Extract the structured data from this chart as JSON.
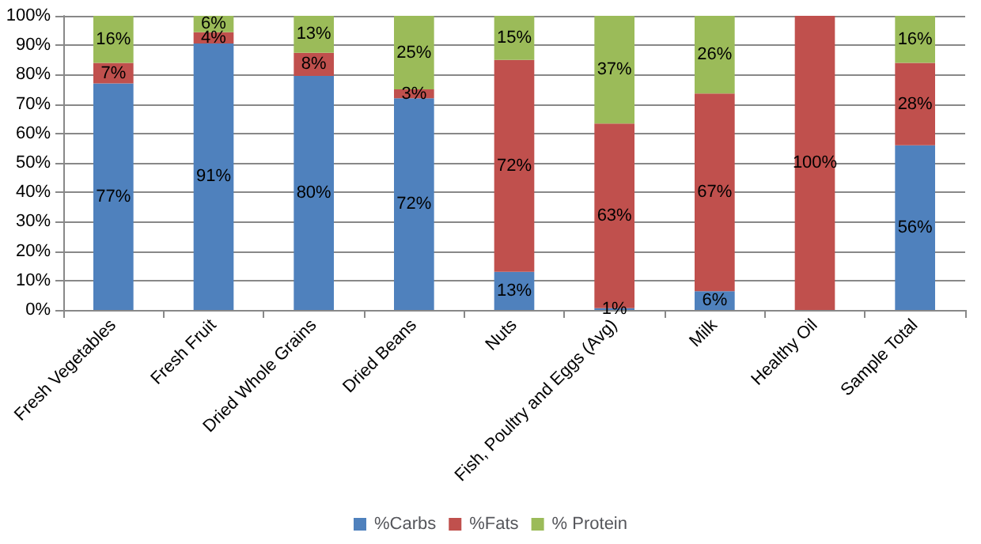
{
  "chart_data": {
    "type": "bar",
    "stacked": true,
    "categories": [
      "Fresh Vegetables",
      "Fresh Fruit",
      "Dried Whole Grains",
      "Dried Beans",
      "Nuts",
      "Fish, Poultry and Eggs (Avg)",
      "Milk",
      "Healthy Oil",
      "Sample Total"
    ],
    "series": [
      {
        "name": "%Carbs",
        "color": "#4f81bd",
        "values": [
          77,
          90.6,
          79.6,
          72,
          13,
          0.6,
          6.4,
          0,
          56
        ],
        "value_labels": [
          "77%",
          "91%",
          "80%",
          "72%",
          "13%",
          "1%",
          "6%",
          null,
          "56%"
        ]
      },
      {
        "name": "%Fats",
        "color": "#c0504d",
        "values": [
          7,
          3.8,
          7.8,
          3,
          72,
          62.8,
          67.2,
          100,
          28
        ],
        "value_labels": [
          "7%",
          "4%",
          "8%",
          "3%",
          "72%",
          "63%",
          "67%",
          "100%",
          "28%"
        ]
      },
      {
        "name": "% Protein",
        "color": "#9bbb59",
        "values": [
          16,
          5.6,
          12.6,
          25,
          15,
          36.6,
          26.4,
          0,
          16
        ],
        "value_labels": [
          "16%",
          "6%",
          "13%",
          "25%",
          "15%",
          "37%",
          "26%",
          null,
          "16%"
        ]
      }
    ],
    "ylim": [
      0,
      100
    ],
    "yticks": [
      {
        "value": 0,
        "label": "0%"
      },
      {
        "value": 10,
        "label": "10%"
      },
      {
        "value": 20,
        "label": "20%"
      },
      {
        "value": 30,
        "label": "30%"
      },
      {
        "value": 40,
        "label": "40%"
      },
      {
        "value": 50,
        "label": "50%"
      },
      {
        "value": 60,
        "label": "60%"
      },
      {
        "value": 70,
        "label": "70%"
      },
      {
        "value": 80,
        "label": "80%"
      },
      {
        "value": 90,
        "label": "90%"
      },
      {
        "value": 100,
        "label": "100%"
      }
    ],
    "grid": "y",
    "legend": "bottom"
  }
}
